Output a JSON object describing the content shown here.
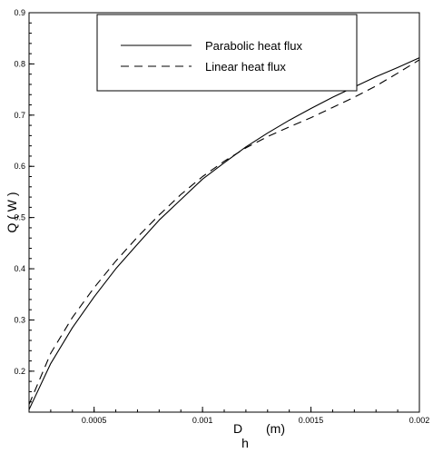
{
  "chart_data": {
    "type": "line",
    "xlabel_main": "D",
    "xlabel_sub": "h",
    "xlabel_unit": "(m)",
    "ylabel": "Q ( W )",
    "xlim": [
      0.0002,
      0.002
    ],
    "ylim": [
      0.12,
      0.9
    ],
    "grid": false,
    "legend_position": "top",
    "x_ticks": [
      0.0005,
      0.001,
      0.0015,
      0.002
    ],
    "x_tick_labels": [
      "0.0005",
      "0.001",
      "0.0015",
      "0.002"
    ],
    "y_ticks": [
      0.2,
      0.3,
      0.4,
      0.5,
      0.6,
      0.7,
      0.8,
      0.9
    ],
    "y_tick_labels": [
      "0.2",
      "0.3",
      "0.4",
      "0.5",
      "0.6",
      "0.7",
      "0.8",
      "0.9"
    ],
    "x_minor_step": 0.0001,
    "y_minor_step": 0.02,
    "series": [
      {
        "name": "Parabolic heat flux",
        "style": "solid",
        "x": [
          0.0002,
          0.0003,
          0.0004,
          0.0005,
          0.0006,
          0.0007,
          0.0008,
          0.0009,
          0.001,
          0.0011,
          0.0012,
          0.0013,
          0.0014,
          0.0015,
          0.0016,
          0.0017,
          0.0018,
          0.0019,
          0.002
        ],
        "y": [
          0.125,
          0.215,
          0.285,
          0.345,
          0.4,
          0.448,
          0.495,
          0.535,
          0.575,
          0.607,
          0.638,
          0.665,
          0.69,
          0.713,
          0.735,
          0.755,
          0.775,
          0.793,
          0.812
        ]
      },
      {
        "name": "Linear heat flux",
        "style": "dashed",
        "x": [
          0.0002,
          0.0003,
          0.0004,
          0.0005,
          0.0006,
          0.0007,
          0.0008,
          0.0009,
          0.001,
          0.0011,
          0.0012,
          0.0013,
          0.0014,
          0.0015,
          0.0016,
          0.0017,
          0.0018,
          0.0019,
          0.002
        ],
        "y": [
          0.135,
          0.235,
          0.305,
          0.363,
          0.415,
          0.462,
          0.505,
          0.545,
          0.58,
          0.61,
          0.636,
          0.658,
          0.677,
          0.695,
          0.715,
          0.735,
          0.757,
          0.782,
          0.808
        ]
      }
    ]
  }
}
